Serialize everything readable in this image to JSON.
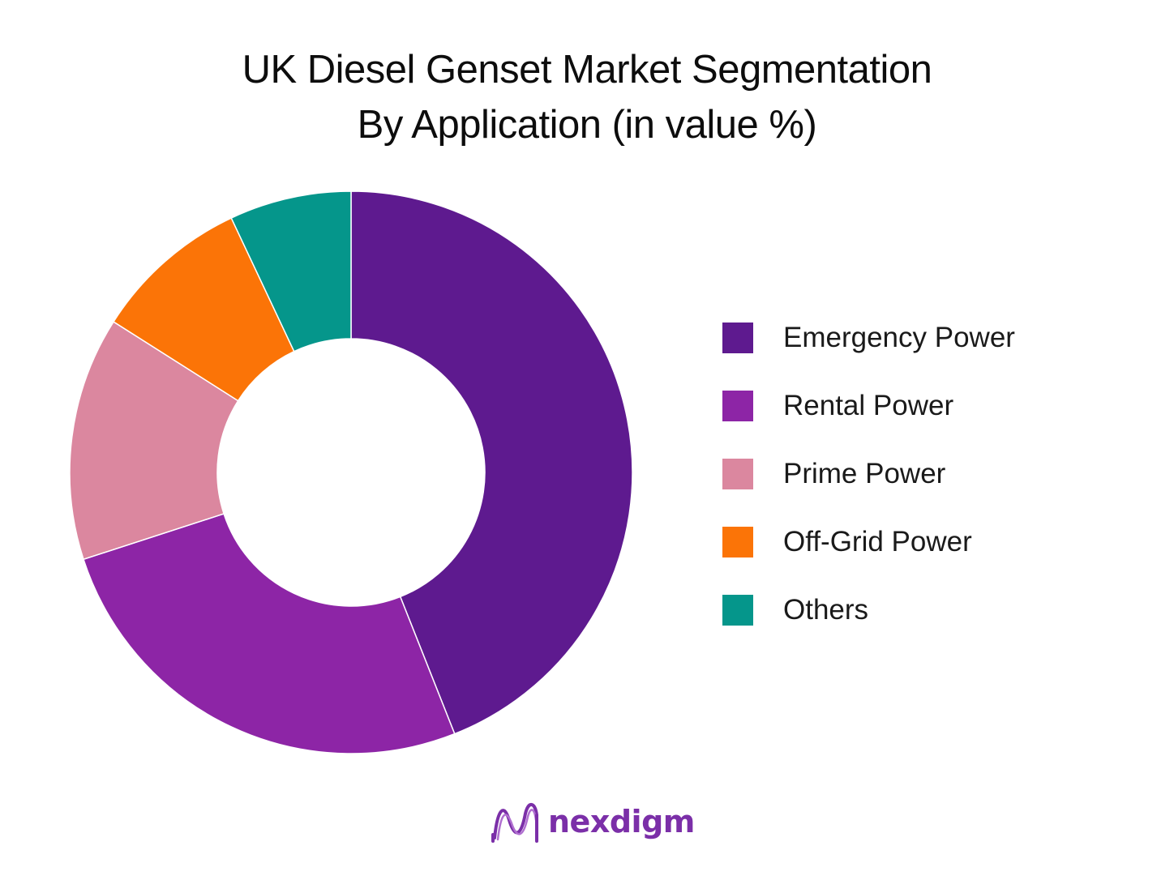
{
  "chart_data": {
    "type": "pie",
    "donut": true,
    "title_lines": [
      "UK Diesel Genset Market Segmentation",
      "By Application (in value %)"
    ],
    "categories": [
      "Emergency Power",
      "Rental Power",
      "Prime Power",
      "Off-Grid Power",
      "Others"
    ],
    "values": [
      44,
      26,
      14,
      9,
      7
    ],
    "colors": [
      "#5e1a8f",
      "#8d25a6",
      "#db879f",
      "#fb7407",
      "#05968b"
    ],
    "legend_position": "right"
  },
  "branding": {
    "logo_text": "nexdigm",
    "logo_icon": "nexdigm-wave-icon",
    "logo_color": "#7b2fa8"
  }
}
